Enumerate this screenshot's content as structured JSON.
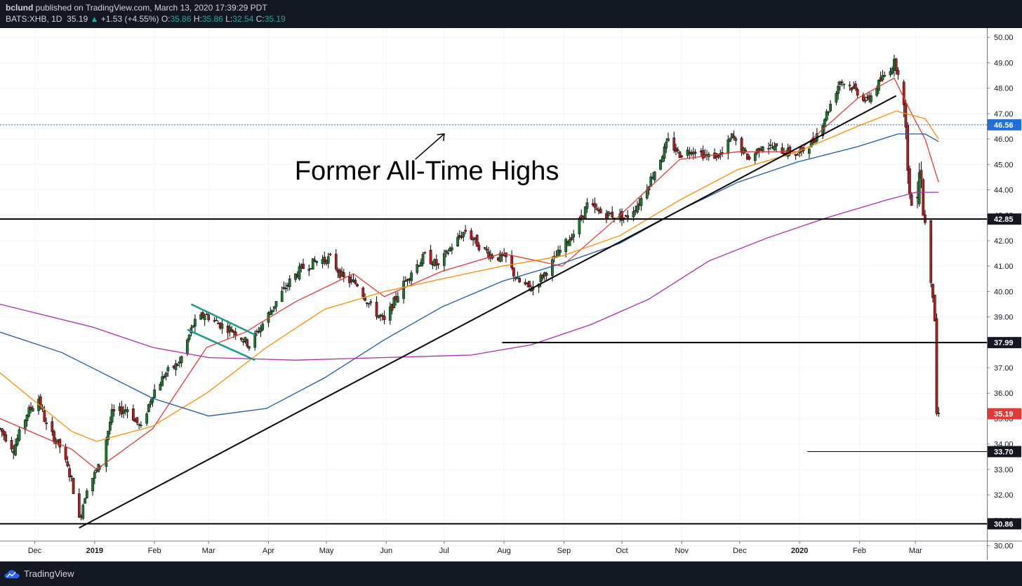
{
  "header": {
    "author": "bclund",
    "published_text": "published on TradingView.com, March 13, 2020 17:39:29 PDT",
    "symbol": "BATS:XHB, 1D",
    "last": "35.19",
    "change_arrow": "▲",
    "change": "+1.53 (+4.55%)",
    "o_label": "O:",
    "o_value": "35.86",
    "h_label": "H:",
    "h_value": "35.86",
    "l_label": "L:",
    "l_value": "32.54",
    "c_label": "C:",
    "c_value": "35.19"
  },
  "footer": {
    "brand": "TradingView"
  },
  "colors": {
    "up": "#26a69a",
    "candle_up": "#1b7a2e",
    "candle_down": "#b71c1c",
    "ma_red": "#e53935",
    "ma_orange": "#ff8c00",
    "ma_blue": "#1e5aa8",
    "ma_purple": "#b02ab0",
    "flag": "#1a9a8a",
    "dotted": "#1e6fd9",
    "last_badge": "#e53935"
  },
  "chart_data": {
    "type": "candlestick",
    "symbol": "BATS:XHB",
    "interval": "1D",
    "x_range": [
      "2018-11-13",
      "2020-04-07"
    ],
    "ylim": [
      29.6,
      50.2
    ],
    "x_ticks": [
      {
        "date": "2018-12-01",
        "label": "Dec",
        "bold": false
      },
      {
        "date": "2019-01-01",
        "label": "2019",
        "bold": true
      },
      {
        "date": "2019-02-01",
        "label": "Feb",
        "bold": false
      },
      {
        "date": "2019-03-01",
        "label": "Mar",
        "bold": false
      },
      {
        "date": "2019-04-01",
        "label": "Apr",
        "bold": false
      },
      {
        "date": "2019-05-01",
        "label": "May",
        "bold": false
      },
      {
        "date": "2019-06-01",
        "label": "Jun",
        "bold": false
      },
      {
        "date": "2019-07-01",
        "label": "Jul",
        "bold": false
      },
      {
        "date": "2019-08-01",
        "label": "Aug",
        "bold": false
      },
      {
        "date": "2019-09-01",
        "label": "Sep",
        "bold": false
      },
      {
        "date": "2019-10-01",
        "label": "Oct",
        "bold": false
      },
      {
        "date": "2019-11-01",
        "label": "Nov",
        "bold": false
      },
      {
        "date": "2019-12-01",
        "label": "Dec",
        "bold": false
      },
      {
        "date": "2020-01-01",
        "label": "2020",
        "bold": true
      },
      {
        "date": "2020-02-01",
        "label": "Feb",
        "bold": false
      },
      {
        "date": "2020-03-01",
        "label": "Mar",
        "bold": false
      }
    ],
    "y_ticks": [
      "30.00",
      "31.00",
      "32.00",
      "33.00",
      "34.00",
      "35.00",
      "36.00",
      "37.00",
      "38.00",
      "39.00",
      "40.00",
      "41.00",
      "42.00",
      "43.00",
      "44.00",
      "45.00",
      "46.00",
      "47.00",
      "48.00",
      "49.00",
      "50.00"
    ],
    "price_path": [
      [
        "2018-11-13",
        34.6
      ],
      [
        "2018-11-20",
        33.8
      ],
      [
        "2018-11-27",
        35.2
      ],
      [
        "2018-12-03",
        35.8
      ],
      [
        "2018-12-07",
        34.7
      ],
      [
        "2018-12-14",
        33.9
      ],
      [
        "2018-12-20",
        32.6
      ],
      [
        "2018-12-24",
        31.0
      ],
      [
        "2018-12-28",
        32.3
      ],
      [
        "2019-01-04",
        33.2
      ],
      [
        "2019-01-10",
        35.2
      ],
      [
        "2019-01-18",
        35.4
      ],
      [
        "2019-01-25",
        34.6
      ],
      [
        "2019-01-31",
        36.0
      ],
      [
        "2019-02-07",
        36.8
      ],
      [
        "2019-02-14",
        37.2
      ],
      [
        "2019-02-21",
        38.7
      ],
      [
        "2019-02-27",
        39.1
      ],
      [
        "2019-03-07",
        38.7
      ],
      [
        "2019-03-15",
        38.4
      ],
      [
        "2019-03-22",
        37.9
      ],
      [
        "2019-03-28",
        38.6
      ],
      [
        "2019-04-05",
        39.6
      ],
      [
        "2019-04-12",
        40.4
      ],
      [
        "2019-04-18",
        40.9
      ],
      [
        "2019-04-26",
        41.2
      ],
      [
        "2019-05-03",
        41.3
      ],
      [
        "2019-05-10",
        40.5
      ],
      [
        "2019-05-17",
        40.3
      ],
      [
        "2019-05-24",
        39.4
      ],
      [
        "2019-05-31",
        38.8
      ],
      [
        "2019-06-07",
        39.9
      ],
      [
        "2019-06-14",
        40.8
      ],
      [
        "2019-06-21",
        41.4
      ],
      [
        "2019-06-28",
        41.0
      ],
      [
        "2019-07-05",
        41.8
      ],
      [
        "2019-07-12",
        42.4
      ],
      [
        "2019-07-19",
        41.8
      ],
      [
        "2019-07-26",
        41.4
      ],
      [
        "2019-08-02",
        41.3
      ],
      [
        "2019-08-08",
        40.4
      ],
      [
        "2019-08-15",
        40.1
      ],
      [
        "2019-08-23",
        40.8
      ],
      [
        "2019-08-30",
        41.6
      ],
      [
        "2019-09-06",
        42.3
      ],
      [
        "2019-09-13",
        43.4
      ],
      [
        "2019-09-20",
        43.1
      ],
      [
        "2019-09-27",
        43.0
      ],
      [
        "2019-10-03",
        42.9
      ],
      [
        "2019-10-10",
        43.5
      ],
      [
        "2019-10-17",
        44.6
      ],
      [
        "2019-10-25",
        45.9
      ],
      [
        "2019-10-31",
        45.4
      ],
      [
        "2019-11-07",
        45.6
      ],
      [
        "2019-11-15",
        45.3
      ],
      [
        "2019-11-22",
        45.4
      ],
      [
        "2019-11-27",
        46.1
      ],
      [
        "2019-12-06",
        45.2
      ],
      [
        "2019-12-13",
        45.8
      ],
      [
        "2019-12-20",
        45.6
      ],
      [
        "2019-12-31",
        45.4
      ],
      [
        "2020-01-08",
        45.9
      ],
      [
        "2020-01-15",
        47.0
      ],
      [
        "2020-01-22",
        48.3
      ],
      [
        "2020-01-29",
        48.0
      ],
      [
        "2020-02-05",
        47.5
      ],
      [
        "2020-02-12",
        48.3
      ],
      [
        "2020-02-19",
        49.0
      ],
      [
        "2020-02-21",
        48.7
      ],
      [
        "2020-02-24",
        47.1
      ],
      [
        "2020-02-25",
        46.0
      ],
      [
        "2020-02-26",
        45.2
      ],
      [
        "2020-02-27",
        43.8
      ],
      [
        "2020-02-28",
        43.4
      ],
      [
        "2020-03-02",
        44.2
      ],
      [
        "2020-03-03",
        45.0
      ],
      [
        "2020-03-04",
        44.7
      ],
      [
        "2020-03-05",
        43.0
      ],
      [
        "2020-03-06",
        42.8
      ],
      [
        "2020-03-09",
        40.5
      ],
      [
        "2020-03-10",
        39.9
      ],
      [
        "2020-03-11",
        38.9
      ],
      [
        "2020-03-12",
        35.2
      ],
      [
        "2020-03-13",
        35.19
      ]
    ],
    "moving_averages": [
      {
        "color_key": "ma_red",
        "points": [
          [
            "2018-11-13",
            35.0
          ],
          [
            "2018-12-20",
            33.8
          ],
          [
            "2019-01-02",
            33.0
          ],
          [
            "2019-01-31",
            34.6
          ],
          [
            "2019-02-28",
            37.8
          ],
          [
            "2019-03-20",
            38.4
          ],
          [
            "2019-04-15",
            39.6
          ],
          [
            "2019-05-15",
            40.7
          ],
          [
            "2019-05-31",
            39.8
          ],
          [
            "2019-06-30",
            40.8
          ],
          [
            "2019-07-31",
            41.5
          ],
          [
            "2019-08-31",
            41.0
          ],
          [
            "2019-09-30",
            43.0
          ],
          [
            "2019-10-31",
            45.2
          ],
          [
            "2019-11-30",
            45.5
          ],
          [
            "2019-12-31",
            45.5
          ],
          [
            "2020-01-31",
            47.6
          ],
          [
            "2020-02-19",
            48.4
          ],
          [
            "2020-02-28",
            47.0
          ],
          [
            "2020-03-06",
            46.0
          ],
          [
            "2020-03-13",
            44.3
          ]
        ]
      },
      {
        "color_key": "ma_orange",
        "points": [
          [
            "2018-11-13",
            36.8
          ],
          [
            "2018-12-20",
            34.5
          ],
          [
            "2019-01-02",
            34.1
          ],
          [
            "2019-01-31",
            34.7
          ],
          [
            "2019-02-28",
            36.0
          ],
          [
            "2019-03-31",
            37.8
          ],
          [
            "2019-04-30",
            39.3
          ],
          [
            "2019-05-31",
            40.0
          ],
          [
            "2019-06-30",
            40.5
          ],
          [
            "2019-07-31",
            41.0
          ],
          [
            "2019-08-31",
            41.4
          ],
          [
            "2019-09-30",
            42.2
          ],
          [
            "2019-10-31",
            43.6
          ],
          [
            "2019-11-30",
            44.8
          ],
          [
            "2019-12-31",
            45.5
          ],
          [
            "2020-01-31",
            46.5
          ],
          [
            "2020-02-20",
            47.1
          ],
          [
            "2020-03-06",
            46.8
          ],
          [
            "2020-03-13",
            46.0
          ]
        ]
      },
      {
        "color_key": "ma_blue",
        "points": [
          [
            "2018-11-13",
            38.4
          ],
          [
            "2018-12-15",
            37.6
          ],
          [
            "2019-01-31",
            35.8
          ],
          [
            "2019-03-01",
            35.1
          ],
          [
            "2019-03-31",
            35.4
          ],
          [
            "2019-04-30",
            36.6
          ],
          [
            "2019-05-31",
            38.1
          ],
          [
            "2019-06-30",
            39.4
          ],
          [
            "2019-07-31",
            40.4
          ],
          [
            "2019-08-31",
            41.1
          ],
          [
            "2019-09-30",
            41.9
          ],
          [
            "2019-10-31",
            43.2
          ],
          [
            "2019-11-30",
            44.3
          ],
          [
            "2019-12-31",
            45.1
          ],
          [
            "2020-01-31",
            45.7
          ],
          [
            "2020-02-21",
            46.2
          ],
          [
            "2020-03-06",
            46.2
          ],
          [
            "2020-03-13",
            45.9
          ]
        ]
      },
      {
        "color_key": "ma_purple",
        "points": [
          [
            "2018-11-13",
            39.5
          ],
          [
            "2018-12-31",
            38.6
          ],
          [
            "2019-01-31",
            37.8
          ],
          [
            "2019-03-01",
            37.4
          ],
          [
            "2019-04-15",
            37.3
          ],
          [
            "2019-05-31",
            37.4
          ],
          [
            "2019-07-15",
            37.5
          ],
          [
            "2019-08-15",
            37.9
          ],
          [
            "2019-09-15",
            38.7
          ],
          [
            "2019-10-15",
            39.7
          ],
          [
            "2019-11-15",
            41.2
          ],
          [
            "2019-12-15",
            42.1
          ],
          [
            "2020-01-15",
            42.9
          ],
          [
            "2020-02-15",
            43.6
          ],
          [
            "2020-03-01",
            43.9
          ],
          [
            "2020-03-13",
            43.9
          ]
        ]
      }
    ],
    "horizontal_levels": [
      {
        "price": 46.56,
        "label": "46.56",
        "style": "dotted",
        "from": "2018-11-13"
      },
      {
        "price": 42.85,
        "label": "42.85",
        "style": "solid",
        "from": "2018-11-13"
      },
      {
        "price": 37.99,
        "label": "37.99",
        "style": "solid",
        "from": "2019-07-31"
      },
      {
        "price": 33.7,
        "label": "33.70",
        "style": "thin",
        "from": "2020-01-05"
      },
      {
        "price": 30.86,
        "label": "30.86",
        "style": "solid",
        "from": "2018-11-13"
      }
    ],
    "last_price": {
      "price": 35.19,
      "label": "35.19"
    },
    "trendline": [
      [
        "2018-12-24",
        30.7
      ],
      [
        "2020-02-20",
        47.7
      ]
    ],
    "flag_lines": [
      [
        [
          "2019-02-20",
          39.5
        ],
        [
          "2019-03-25",
          38.3
        ]
      ],
      [
        [
          "2019-02-18",
          38.5
        ],
        [
          "2019-03-25",
          37.3
        ]
      ]
    ],
    "annotation": {
      "text": "Former All-Time Highs",
      "anchor": [
        "2019-06-22",
        44.4
      ],
      "arrow_from": [
        "2019-06-16",
        45.2
      ],
      "arrow_to": [
        "2019-07-01",
        46.2
      ]
    }
  }
}
